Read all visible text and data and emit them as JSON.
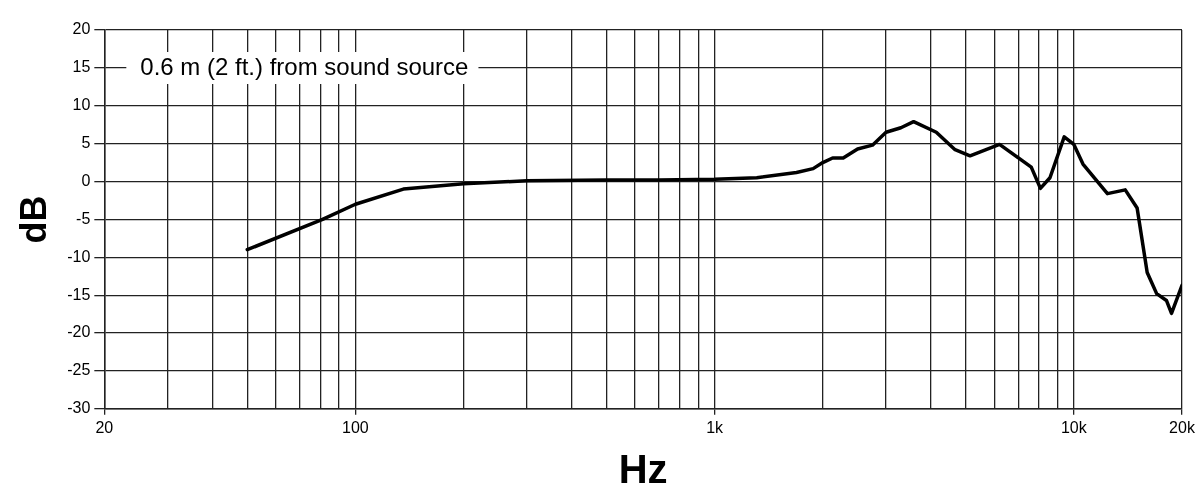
{
  "chart_data": {
    "type": "line",
    "xlabel": "Hz",
    "ylabel": "dB",
    "annotations": [
      "0.6 m (2 ft.) from sound source"
    ],
    "log": "x",
    "grid": true,
    "line_style": "solid",
    "xlim": [
      20,
      20000
    ],
    "ylim": [
      -30,
      20
    ],
    "xticks": [
      20,
      {
        "value": 30,
        "label": null
      },
      {
        "value": 40,
        "label": null
      },
      {
        "value": 50,
        "label": null
      },
      {
        "value": 60,
        "label": null
      },
      {
        "value": 70,
        "label": null
      },
      {
        "value": 80,
        "label": null
      },
      {
        "value": 90,
        "label": null
      },
      100,
      {
        "value": 200,
        "label": null
      },
      {
        "value": 300,
        "label": null
      },
      {
        "value": 400,
        "label": null
      },
      {
        "value": 500,
        "label": null
      },
      {
        "value": 600,
        "label": null
      },
      {
        "value": 700,
        "label": null
      },
      {
        "value": 800,
        "label": null
      },
      {
        "value": 900,
        "label": null
      },
      {
        "value": 1000,
        "label": "1k"
      },
      {
        "value": 2000,
        "label": null
      },
      {
        "value": 3000,
        "label": null
      },
      {
        "value": 4000,
        "label": null
      },
      {
        "value": 5000,
        "label": null
      },
      {
        "value": 6000,
        "label": null
      },
      {
        "value": 7000,
        "label": null
      },
      {
        "value": 8000,
        "label": null
      },
      {
        "value": 9000,
        "label": null
      },
      {
        "value": 10000,
        "label": "10k"
      },
      {
        "value": 20000,
        "label": "20k"
      }
    ],
    "yticks": [
      -30,
      -25,
      -20,
      -15,
      -10,
      -5,
      0,
      5,
      10,
      15,
      20
    ],
    "x": [
      50,
      81,
      100,
      136,
      200,
      300,
      500,
      700,
      1000,
      1310,
      1690,
      1880,
      2000,
      2130,
      2280,
      2500,
      2750,
      3000,
      3300,
      3580,
      4140,
      4670,
      5140,
      6210,
      7610,
      8070,
      8580,
      9400,
      10000,
      10600,
      12400,
      13900,
      15000,
      16000,
      17000,
      18100,
      18700,
      20000
    ],
    "series": [
      {
        "color": "#000000",
        "values": [
          -9,
          -5,
          -3,
          -1,
          -0.3,
          0.1,
          0.2,
          0.2,
          0.3,
          0.5,
          1.2,
          1.7,
          2.5,
          3.1,
          3.1,
          4.3,
          4.8,
          6.5,
          7.1,
          7.9,
          6.5,
          4.2,
          3.4,
          4.9,
          1.9,
          -0.9,
          0.5,
          5.9,
          4.9,
          2.3,
          -1.6,
          -1.1,
          -3.5,
          -12,
          -14.8,
          -15.7,
          -17.4,
          -13.7
        ]
      }
    ]
  }
}
